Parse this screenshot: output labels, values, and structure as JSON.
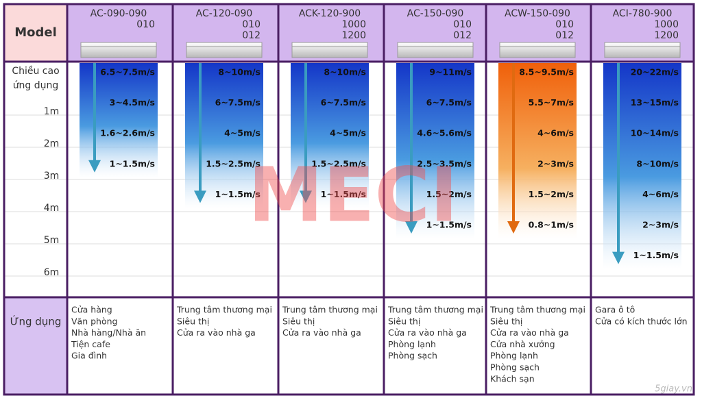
{
  "header": {
    "model_label": "Model",
    "height_label": [
      "Chiều cao",
      "ứng dụng"
    ],
    "application_label": "Ứng dụng"
  },
  "heights": [
    "1m",
    "2m",
    "3m",
    "4m",
    "5m",
    "6m"
  ],
  "columns": [
    {
      "model": [
        "AC-090-090",
        "010"
      ],
      "arrow_color": "blue",
      "speeds": [
        "6.5~7.5m/s",
        "3~4.5m/s",
        "1.6~2.6m/s",
        "1~1.5m/s"
      ],
      "applications": [
        "Cửa hàng",
        "Văn phòng",
        "Nhà hàng/Nhà ăn",
        "Tiện cafe",
        "Gia đình"
      ]
    },
    {
      "model": [
        "AC-120-090",
        "010",
        "012"
      ],
      "arrow_color": "blue",
      "speeds": [
        "8~10m/s",
        "6~7.5m/s",
        "4~5m/s",
        "1.5~2.5m/s",
        "1~1.5m/s"
      ],
      "applications": [
        "Trung tâm thương mại",
        "Siêu thị",
        "Cửa ra vào nhà ga"
      ]
    },
    {
      "model": [
        "ACK-120-900",
        "1000",
        "1200"
      ],
      "arrow_color": "blue",
      "speeds": [
        "8~10m/s",
        "6~7.5m/s",
        "4~5m/s",
        "1.5~2.5m/s",
        "1~1.5m/s"
      ],
      "applications": [
        "Trung tâm thương mại",
        "Siêu thị",
        "Cửa ra vào nhà ga"
      ]
    },
    {
      "model": [
        "AC-150-090",
        "010",
        "012"
      ],
      "arrow_color": "blue",
      "speeds": [
        "9~11m/s",
        "6~7.5m/s",
        "4.6~5.6m/s",
        "2.5~3.5m/s",
        "1.5~2m/s",
        "1~1.5m/s"
      ],
      "applications": [
        "Trung tâm thương mại",
        "Siêu thị",
        "Cửa ra vào nhà ga",
        "Phòng lạnh",
        "Phòng sạch"
      ]
    },
    {
      "model": [
        "ACW-150-090",
        "010",
        "012"
      ],
      "arrow_color": "orange",
      "speeds": [
        "8.5~9.5m/s",
        "5.5~7m/s",
        "4~6m/s",
        "2~3m/s",
        "1.5~2m/s",
        "0.8~1m/s"
      ],
      "applications": [
        "Trung tâm thương mại",
        "Siêu thị",
        "Cửa ra vào nhà ga",
        "Cửa nhà xưởng",
        "Phòng lạnh",
        "Phòng sạch",
        "Khách sạn"
      ]
    },
    {
      "model": [
        "ACI-780-900",
        "1000",
        "1200"
      ],
      "arrow_color": "blue",
      "speeds": [
        "20~22m/s",
        "13~15m/s",
        "10~14m/s",
        "8~10m/s",
        "4~6m/s",
        "2~3m/s",
        "1~1.5m/s"
      ],
      "applications": [
        "Gara ô tô",
        "Cửa có kích thước lớn"
      ]
    }
  ],
  "watermarks": [
    "MECI",
    "5giay.vn"
  ]
}
